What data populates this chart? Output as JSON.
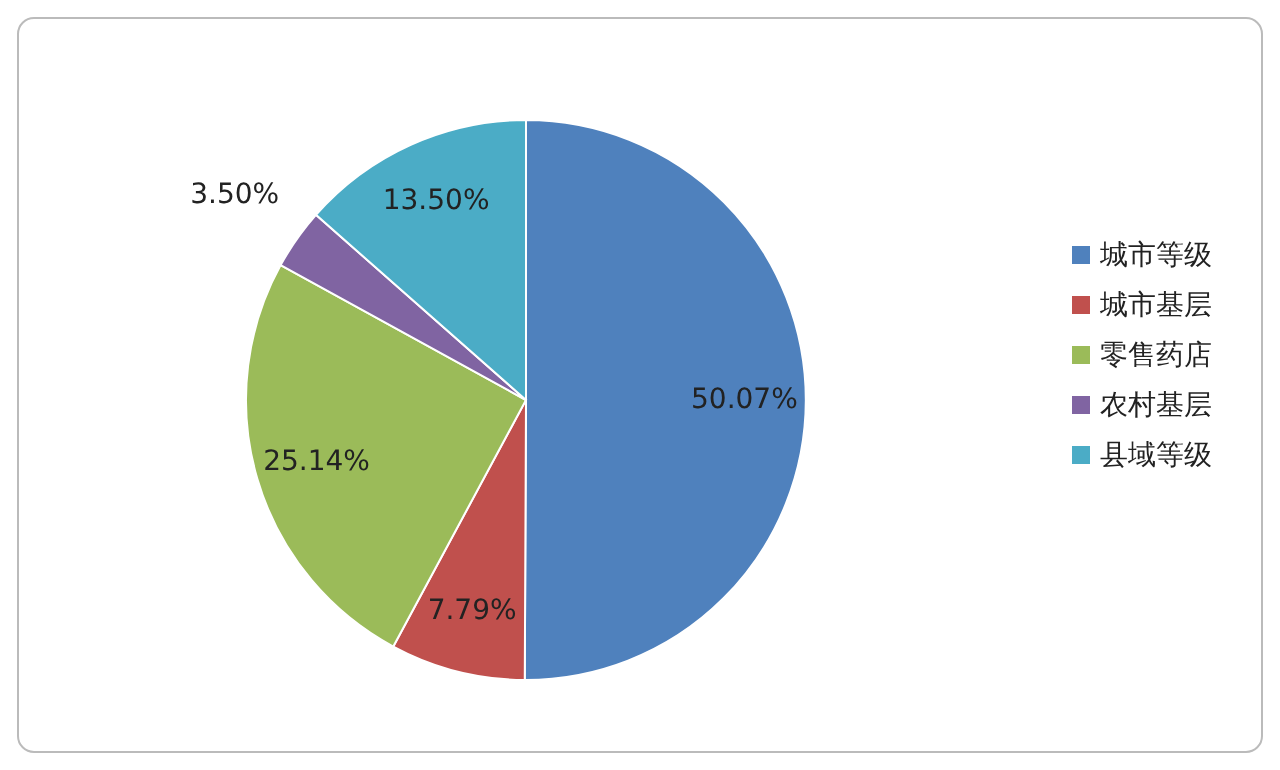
{
  "chart_data": {
    "type": "pie",
    "categories": [
      "城市等级",
      "城市基层",
      "零售药店",
      "农村基层",
      "县域等级"
    ],
    "values": [
      50.07,
      7.79,
      25.14,
      3.5,
      13.5
    ],
    "colors": [
      "#4f81bd",
      "#c0504d",
      "#9bbb59",
      "#8064a2",
      "#4bacc6"
    ],
    "value_labels": [
      "50.07%",
      "7.79%",
      "25.14%",
      "3.50%",
      "13.50%"
    ],
    "legend": "right"
  }
}
